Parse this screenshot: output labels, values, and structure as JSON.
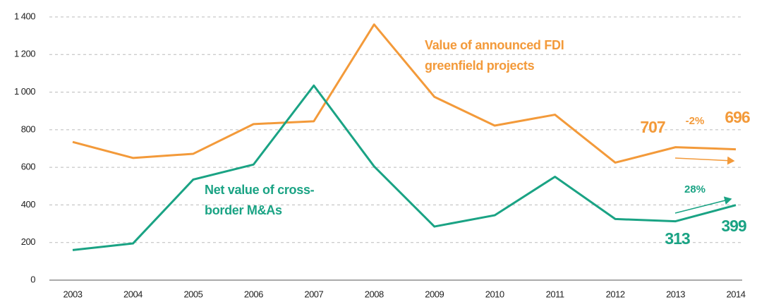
{
  "chart_data": {
    "type": "line",
    "categories": [
      "2003",
      "2004",
      "2005",
      "2006",
      "2007",
      "2008",
      "2009",
      "2010",
      "2011",
      "2012",
      "2013",
      "2014"
    ],
    "series": [
      {
        "name": "Value of announced FDI greenfield projects",
        "color": "#f39a3a",
        "values": [
          735,
          650,
          672,
          830,
          845,
          1360,
          975,
          822,
          880,
          625,
          707,
          696
        ]
      },
      {
        "name": "Net value of cross-border M&As",
        "color": "#1aa384",
        "values": [
          160,
          195,
          535,
          615,
          1035,
          605,
          285,
          345,
          550,
          325,
          313,
          399
        ]
      }
    ],
    "annotations": [
      "-2%",
      "28%"
    ],
    "ylim": [
      0,
      1400
    ],
    "yticks": [
      0,
      200,
      400,
      600,
      800,
      {
        "value": 1000,
        "label": "1 000"
      },
      {
        "value": 1200,
        "label": "1 200"
      },
      {
        "value": 1400,
        "label": "1 400"
      }
    ],
    "grid": true
  }
}
